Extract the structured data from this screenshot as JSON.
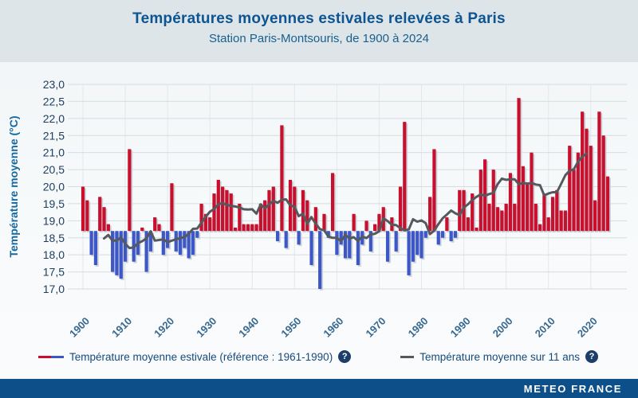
{
  "header": {
    "title": "Températures moyennes estivales relevées à Paris",
    "subtitle": "Station Paris-Montsouris, de 1900 à 2024"
  },
  "y_axis": {
    "title": "Température moyenne (°C)",
    "tick_labels": [
      "23,0",
      "22,5",
      "22,0",
      "21,5",
      "21,0",
      "20,5",
      "20,0",
      "19,5",
      "19,0",
      "18,5",
      "18,0",
      "17,5",
      "17,0"
    ]
  },
  "x_axis": {
    "ticks": [
      1900,
      1910,
      1920,
      1930,
      1940,
      1950,
      1960,
      1970,
      1980,
      1990,
      2000,
      2010,
      2020
    ]
  },
  "legend": {
    "item1": {
      "label": "Température moyenne estivale (référence : 1961-1990)",
      "swatch": "red-blue-dash",
      "help_icon": "question-mark"
    },
    "item2": {
      "label": "Température moyenne sur 11 ans",
      "swatch": "gray-dash",
      "help_icon": "question-mark"
    }
  },
  "footer": {
    "brand": "METEO FRANCE"
  },
  "colors": {
    "above_reference": "#c8102e",
    "below_reference": "#3d57c8",
    "moving_average_line": "#55595d",
    "bar_shadow": "#ccd2d7",
    "grid": "#d7dce0",
    "grid_vertical": "#e4e8eb",
    "header_band": "#dde5e8",
    "footer_bar": "#0d5089"
  },
  "chart_data": {
    "type": "bar",
    "title": "Températures moyennes estivales relevées à Paris",
    "subtitle": "Station Paris-Montsouris, de 1900 à 2024",
    "ylabel": "Température moyenne (°C)",
    "ylim": [
      17.0,
      23.0
    ],
    "ytick_step": 0.5,
    "grid": true,
    "start_year": 1900,
    "end_year": 2024,
    "reference": 18.7,
    "reference_period": "1961-1990",
    "moving_average_window": 11,
    "values": [
      20.0,
      19.6,
      18.0,
      17.7,
      19.7,
      19.4,
      18.9,
      17.5,
      17.4,
      17.3,
      17.8,
      21.1,
      17.8,
      18.0,
      18.8,
      17.5,
      18.1,
      19.1,
      18.9,
      18.0,
      18.2,
      20.1,
      18.1,
      18.0,
      18.2,
      17.9,
      18.0,
      18.5,
      19.5,
      19.2,
      19.1,
      19.8,
      20.2,
      20.0,
      19.9,
      19.8,
      18.8,
      19.5,
      18.9,
      18.9,
      18.9,
      18.9,
      19.5,
      19.6,
      19.9,
      20.0,
      18.4,
      21.8,
      18.2,
      20.2,
      20.0,
      18.3,
      19.9,
      19.6,
      17.7,
      19.4,
      17.0,
      19.2,
      18.5,
      20.4,
      18.0,
      18.3,
      17.9,
      17.9,
      19.2,
      17.7,
      18.3,
      19.0,
      18.1,
      18.9,
      19.2,
      19.4,
      17.8,
      19.1,
      18.1,
      20.0,
      21.9,
      17.4,
      17.8,
      18.0,
      17.9,
      18.5,
      19.7,
      21.1,
      18.3,
      18.5,
      19.1,
      18.4,
      18.5,
      19.9,
      19.9,
      19.1,
      19.8,
      18.8,
      20.5,
      20.8,
      19.5,
      20.5,
      19.4,
      19.3,
      19.5,
      20.4,
      19.5,
      22.6,
      20.6,
      20.1,
      21.0,
      19.5,
      18.9,
      19.8,
      19.1,
      19.7,
      19.9,
      19.3,
      19.3,
      21.2,
      20.5,
      21.0,
      22.2,
      21.7,
      21.2,
      19.6,
      22.2,
      21.5,
      20.3
    ]
  }
}
